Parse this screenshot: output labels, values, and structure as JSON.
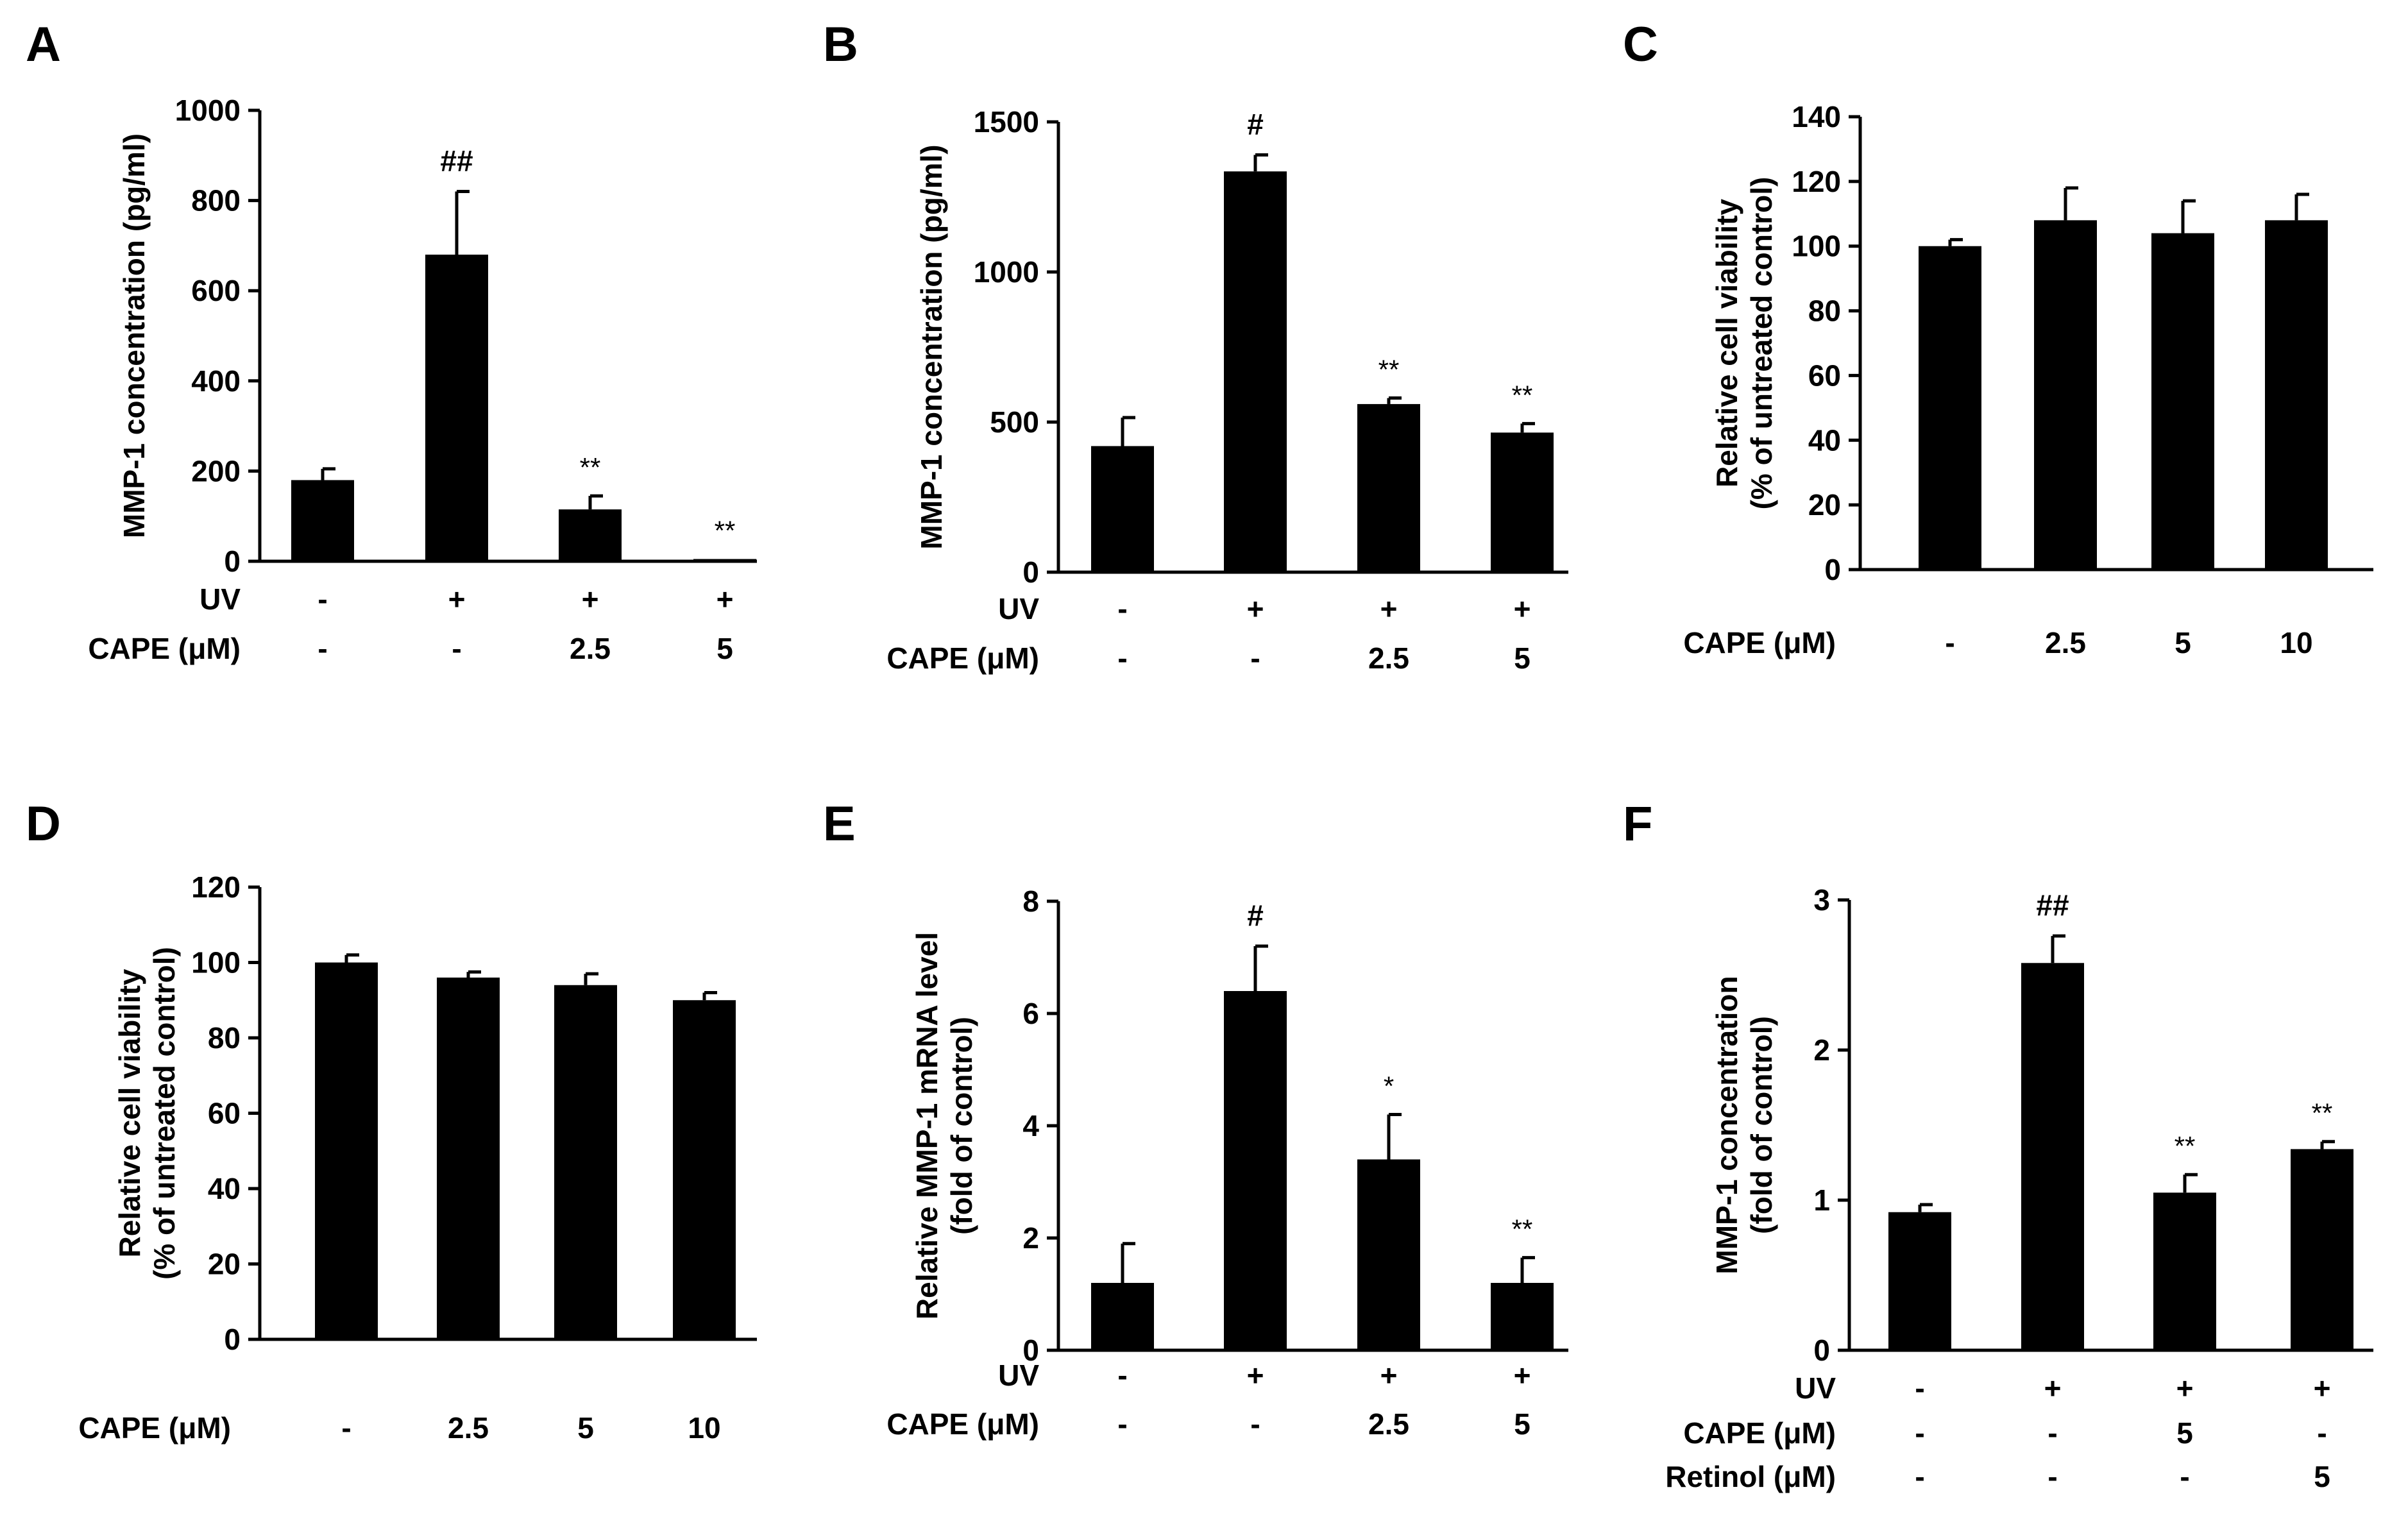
{
  "figure": {
    "panels": [
      "A",
      "B",
      "C",
      "D",
      "E",
      "F"
    ]
  },
  "chart_data": [
    {
      "panel": "A",
      "type": "bar",
      "title": "",
      "ylabel": [
        "MMP-1 concentration (pg/ml)"
      ],
      "ylim": [
        0,
        1000
      ],
      "yticks": [
        0,
        200,
        400,
        600,
        800,
        1000
      ],
      "yticklabels": [
        "0",
        "200",
        "400",
        "600",
        "800",
        "1000"
      ],
      "values": [
        180,
        680,
        115,
        5
      ],
      "errors": [
        25,
        140,
        30,
        0
      ],
      "annotations": [
        "",
        "##",
        "**",
        "**"
      ],
      "conditions": [
        {
          "label": "UV",
          "values": [
            "-",
            "+",
            "+",
            "+"
          ]
        },
        {
          "label": "CAPE (μM)",
          "values": [
            "-",
            "-",
            "2.5",
            "5"
          ]
        }
      ]
    },
    {
      "panel": "B",
      "type": "bar",
      "title": "",
      "ylabel": [
        "MMP-1 concentration (pg/ml)"
      ],
      "ylim": [
        0,
        1500
      ],
      "yticks": [
        0,
        500,
        1000,
        1500
      ],
      "yticklabels": [
        "0",
        "500",
        "1000",
        "1500"
      ],
      "values": [
        420,
        1335,
        560,
        465
      ],
      "errors": [
        95,
        55,
        20,
        30
      ],
      "annotations": [
        "",
        "#",
        "**",
        "**"
      ],
      "conditions": [
        {
          "label": "UV",
          "values": [
            "-",
            "+",
            "+",
            "+"
          ]
        },
        {
          "label": "CAPE (μM)",
          "values": [
            "-",
            "-",
            "2.5",
            "5"
          ]
        }
      ]
    },
    {
      "panel": "C",
      "type": "bar",
      "title": "",
      "ylabel": [
        "Relative cell viability",
        "(% of untreated control)"
      ],
      "ylim": [
        0,
        140
      ],
      "yticks": [
        0,
        20,
        40,
        60,
        80,
        100,
        120,
        140
      ],
      "yticklabels": [
        "0",
        "20",
        "40",
        "60",
        "80",
        "100",
        "120",
        "140"
      ],
      "values": [
        100,
        108,
        104,
        108
      ],
      "errors": [
        2,
        10,
        10,
        8
      ],
      "annotations": [
        "",
        "",
        "",
        ""
      ],
      "conditions": [
        {
          "label": "CAPE (μM)",
          "values": [
            "-",
            "2.5",
            "5",
            "10"
          ]
        }
      ]
    },
    {
      "panel": "D",
      "type": "bar",
      "title": "",
      "ylabel": [
        "Relative cell viability",
        "(% of untreated control)"
      ],
      "ylim": [
        0,
        120
      ],
      "yticks": [
        0,
        20,
        40,
        60,
        80,
        100,
        120
      ],
      "yticklabels": [
        "0",
        "20",
        "40",
        "60",
        "80",
        "100",
        "120"
      ],
      "values": [
        100,
        96,
        94,
        90
      ],
      "errors": [
        2,
        1.5,
        3,
        2
      ],
      "annotations": [
        "",
        "",
        "",
        ""
      ],
      "conditions": [
        {
          "label": "CAPE (μM)",
          "values": [
            "-",
            "2.5",
            "5",
            "10"
          ]
        }
      ]
    },
    {
      "panel": "E",
      "type": "bar",
      "title": "",
      "ylabel": [
        "Relative MMP-1 mRNA level",
        "(fold of control)"
      ],
      "ylim": [
        0,
        8
      ],
      "yticks": [
        0,
        2,
        4,
        6,
        8
      ],
      "yticklabels": [
        "0",
        "2",
        "4",
        "6",
        "8"
      ],
      "values": [
        1.2,
        6.4,
        3.4,
        1.2
      ],
      "errors": [
        0.7,
        0.8,
        0.8,
        0.45
      ],
      "annotations": [
        "",
        "#",
        "*",
        "**"
      ],
      "conditions": [
        {
          "label": "UV",
          "values": [
            "-",
            "+",
            "+",
            "+"
          ]
        },
        {
          "label": "CAPE (μM)",
          "values": [
            "-",
            "-",
            "2.5",
            "5"
          ]
        }
      ]
    },
    {
      "panel": "F",
      "type": "bar",
      "title": "",
      "ylabel": [
        "MMP-1 concentration",
        "(fold of control)"
      ],
      "ylim": [
        0,
        3
      ],
      "yticks": [
        0,
        1,
        2,
        3
      ],
      "yticklabels": [
        "0",
        "1",
        "2",
        "3"
      ],
      "values": [
        0.92,
        2.58,
        1.05,
        1.34
      ],
      "errors": [
        0.05,
        0.18,
        0.12,
        0.05
      ],
      "annotations": [
        "",
        "##",
        "**",
        "**"
      ],
      "conditions": [
        {
          "label": "UV",
          "values": [
            "-",
            "+",
            "+",
            "+"
          ]
        },
        {
          "label": "CAPE (μM)",
          "values": [
            "-",
            "-",
            "5",
            "-"
          ]
        },
        {
          "label": "Retinol (μM)",
          "values": [
            "-",
            "-",
            "-",
            "5"
          ]
        }
      ]
    }
  ]
}
